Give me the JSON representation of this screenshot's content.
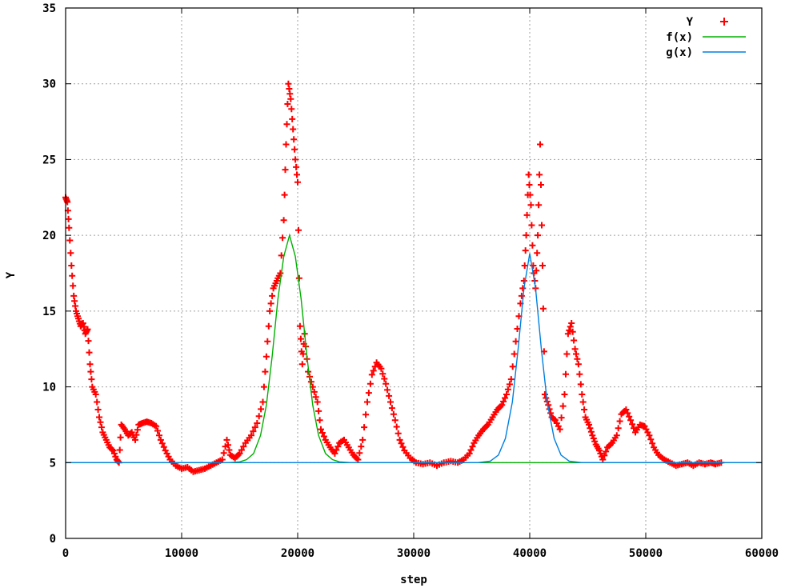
{
  "chart_data": {
    "type": "scatter",
    "title": "",
    "xlabel": "step",
    "ylabel": "Y",
    "xlim": [
      0,
      60000
    ],
    "ylim": [
      0,
      35
    ],
    "grid": true,
    "legend_position": "top-right",
    "x_ticks": [
      0,
      10000,
      20000,
      30000,
      40000,
      50000,
      60000
    ],
    "y_ticks": [
      0,
      5,
      10,
      15,
      20,
      25,
      30,
      35
    ],
    "x_tick_labels": [
      "0",
      "10000",
      "20000",
      "30000",
      "40000",
      "50000",
      "60000"
    ],
    "y_tick_labels": [
      "0",
      "5",
      "10",
      "15",
      "20",
      "25",
      "30",
      "35"
    ],
    "colors": {
      "Y": "#ff0000",
      "f(x)": "#00b000",
      "g(x)": "#0080e0"
    },
    "series": [
      {
        "name": "Y",
        "style": "points",
        "marker": "+",
        "points": [
          [
            0,
            22.5
          ],
          [
            150,
            22.2
          ],
          [
            300,
            20.5
          ],
          [
            500,
            18.0
          ],
          [
            700,
            16.0
          ],
          [
            900,
            15.0
          ],
          [
            1100,
            14.5
          ],
          [
            1300,
            14.0
          ],
          [
            1500,
            14.2
          ],
          [
            1700,
            13.5
          ],
          [
            1900,
            13.8
          ],
          [
            2100,
            11.5
          ],
          [
            2300,
            10.0
          ],
          [
            2600,
            9.5
          ],
          [
            2900,
            8.0
          ],
          [
            3200,
            7.0
          ],
          [
            3500,
            6.5
          ],
          [
            3800,
            6.0
          ],
          [
            4100,
            5.8
          ],
          [
            4400,
            5.2
          ],
          [
            4600,
            5.0
          ],
          [
            4800,
            7.5
          ],
          [
            5100,
            7.2
          ],
          [
            5400,
            6.8
          ],
          [
            5700,
            7.0
          ],
          [
            6000,
            6.5
          ],
          [
            6300,
            7.5
          ],
          [
            6600,
            7.6
          ],
          [
            7000,
            7.7
          ],
          [
            7400,
            7.6
          ],
          [
            7800,
            7.4
          ],
          [
            8200,
            6.5
          ],
          [
            8600,
            5.8
          ],
          [
            9000,
            5.2
          ],
          [
            9500,
            4.8
          ],
          [
            10000,
            4.6
          ],
          [
            10500,
            4.7
          ],
          [
            11000,
            4.4
          ],
          [
            11500,
            4.5
          ],
          [
            12000,
            4.6
          ],
          [
            12500,
            4.8
          ],
          [
            13000,
            5.0
          ],
          [
            13500,
            5.2
          ],
          [
            13900,
            6.5
          ],
          [
            14200,
            5.5
          ],
          [
            14600,
            5.3
          ],
          [
            15000,
            5.6
          ],
          [
            15500,
            6.3
          ],
          [
            16000,
            6.8
          ],
          [
            16500,
            7.6
          ],
          [
            17000,
            9.0
          ],
          [
            17300,
            12.0
          ],
          [
            17600,
            15.0
          ],
          [
            17900,
            16.5
          ],
          [
            18200,
            17.0
          ],
          [
            18500,
            17.5
          ],
          [
            18800,
            21.0
          ],
          [
            19000,
            26.0
          ],
          [
            19200,
            30.0
          ],
          [
            19400,
            29.0
          ],
          [
            19600,
            27.0
          ],
          [
            19800,
            25.0
          ],
          [
            20000,
            23.5
          ],
          [
            20200,
            14.0
          ],
          [
            20400,
            11.5
          ],
          [
            20600,
            13.5
          ],
          [
            20900,
            11.0
          ],
          [
            21300,
            10.0
          ],
          [
            21700,
            9.0
          ],
          [
            22000,
            7.2
          ],
          [
            22400,
            6.5
          ],
          [
            22800,
            6.0
          ],
          [
            23200,
            5.6
          ],
          [
            23600,
            6.3
          ],
          [
            24000,
            6.5
          ],
          [
            24400,
            6.0
          ],
          [
            24800,
            5.5
          ],
          [
            25200,
            5.2
          ],
          [
            25600,
            6.5
          ],
          [
            26000,
            9.0
          ],
          [
            26400,
            10.8
          ],
          [
            26800,
            11.6
          ],
          [
            27200,
            11.2
          ],
          [
            27600,
            10.2
          ],
          [
            28000,
            9.0
          ],
          [
            28400,
            7.8
          ],
          [
            28800,
            6.5
          ],
          [
            29200,
            5.8
          ],
          [
            29700,
            5.3
          ],
          [
            30200,
            5.0
          ],
          [
            30800,
            4.9
          ],
          [
            31400,
            5.0
          ],
          [
            32000,
            4.8
          ],
          [
            32600,
            5.0
          ],
          [
            33200,
            5.1
          ],
          [
            33800,
            5.0
          ],
          [
            34300,
            5.2
          ],
          [
            34800,
            5.6
          ],
          [
            35200,
            6.3
          ],
          [
            35600,
            6.8
          ],
          [
            36000,
            7.2
          ],
          [
            36400,
            7.5
          ],
          [
            36800,
            8.0
          ],
          [
            37200,
            8.5
          ],
          [
            37600,
            8.8
          ],
          [
            38000,
            9.5
          ],
          [
            38400,
            10.5
          ],
          [
            38800,
            13.0
          ],
          [
            39200,
            15.5
          ],
          [
            39500,
            17.0
          ],
          [
            39700,
            20.0
          ],
          [
            39900,
            24.0
          ],
          [
            40100,
            22.0
          ],
          [
            40300,
            18.0
          ],
          [
            40500,
            16.5
          ],
          [
            40700,
            20.0
          ],
          [
            40900,
            26.0
          ],
          [
            41100,
            18.0
          ],
          [
            41300,
            9.5
          ],
          [
            41600,
            8.8
          ],
          [
            41900,
            8.0
          ],
          [
            42200,
            7.8
          ],
          [
            42600,
            7.2
          ],
          [
            43000,
            9.5
          ],
          [
            43300,
            13.5
          ],
          [
            43600,
            14.2
          ],
          [
            43900,
            12.5
          ],
          [
            44200,
            11.5
          ],
          [
            44500,
            9.5
          ],
          [
            44800,
            8.0
          ],
          [
            45100,
            7.5
          ],
          [
            45400,
            6.8
          ],
          [
            45700,
            6.2
          ],
          [
            46000,
            5.8
          ],
          [
            46300,
            5.2
          ],
          [
            46700,
            6.0
          ],
          [
            47100,
            6.3
          ],
          [
            47500,
            6.8
          ],
          [
            47900,
            8.2
          ],
          [
            48300,
            8.5
          ],
          [
            48700,
            7.8
          ],
          [
            49100,
            7.0
          ],
          [
            49500,
            7.5
          ],
          [
            49900,
            7.4
          ],
          [
            50300,
            6.8
          ],
          [
            50700,
            6.0
          ],
          [
            51100,
            5.5
          ],
          [
            51600,
            5.2
          ],
          [
            52100,
            5.0
          ],
          [
            52600,
            4.8
          ],
          [
            53100,
            4.9
          ],
          [
            53600,
            5.0
          ],
          [
            54100,
            4.8
          ],
          [
            54600,
            5.0
          ],
          [
            55100,
            4.9
          ],
          [
            55600,
            5.0
          ],
          [
            56000,
            4.9
          ],
          [
            56500,
            5.0
          ]
        ]
      },
      {
        "name": "f(x)",
        "style": "line",
        "points": [
          [
            0,
            5.0
          ],
          [
            14000,
            5.0
          ],
          [
            15000,
            5.05
          ],
          [
            15600,
            5.2
          ],
          [
            16200,
            5.6
          ],
          [
            16800,
            6.8
          ],
          [
            17300,
            8.8
          ],
          [
            17800,
            12.0
          ],
          [
            18300,
            15.8
          ],
          [
            18800,
            18.6
          ],
          [
            19300,
            20.0
          ],
          [
            19800,
            18.6
          ],
          [
            20300,
            15.8
          ],
          [
            20800,
            12.0
          ],
          [
            21300,
            8.8
          ],
          [
            21800,
            6.8
          ],
          [
            22400,
            5.6
          ],
          [
            23000,
            5.2
          ],
          [
            23600,
            5.05
          ],
          [
            24600,
            5.0
          ],
          [
            60000,
            5.0
          ]
        ]
      },
      {
        "name": "g(x)",
        "style": "line",
        "points": [
          [
            0,
            5.0
          ],
          [
            35500,
            5.0
          ],
          [
            36600,
            5.1
          ],
          [
            37300,
            5.5
          ],
          [
            37900,
            6.6
          ],
          [
            38500,
            9.0
          ],
          [
            39000,
            12.5
          ],
          [
            39500,
            16.5
          ],
          [
            40000,
            18.8
          ],
          [
            40500,
            16.5
          ],
          [
            41000,
            12.5
          ],
          [
            41500,
            9.0
          ],
          [
            42100,
            6.6
          ],
          [
            42700,
            5.5
          ],
          [
            43400,
            5.1
          ],
          [
            44500,
            5.0
          ],
          [
            60000,
            5.0
          ]
        ]
      }
    ]
  }
}
